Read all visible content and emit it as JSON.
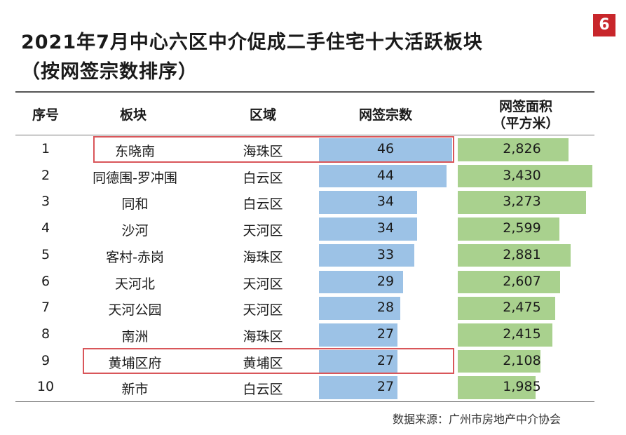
{
  "page_number": "6",
  "chart_data": {
    "type": "table",
    "title": "2021年7月中心六区中介促成二手住宅十大活跃板块",
    "subtitle": "（按网签宗数排序）",
    "columns": [
      "序号",
      "板块",
      "区域",
      "网签宗数",
      "网签面积",
      "（平方米）"
    ],
    "rows": [
      {
        "rank": "1",
        "block": "东晓南",
        "district": "海珠区",
        "count": 46,
        "count_label": "46",
        "area": 2826,
        "area_label": "2,826",
        "highlight": true
      },
      {
        "rank": "2",
        "block": "同德围-罗冲围",
        "district": "白云区",
        "count": 44,
        "count_label": "44",
        "area": 3430,
        "area_label": "3,430",
        "highlight": false
      },
      {
        "rank": "3",
        "block": "同和",
        "district": "白云区",
        "count": 34,
        "count_label": "34",
        "area": 3273,
        "area_label": "3,273",
        "highlight": false
      },
      {
        "rank": "4",
        "block": "沙河",
        "district": "天河区",
        "count": 34,
        "count_label": "34",
        "area": 2599,
        "area_label": "2,599",
        "highlight": false
      },
      {
        "rank": "5",
        "block": "客村-赤岗",
        "district": "海珠区",
        "count": 33,
        "count_label": "33",
        "area": 2881,
        "area_label": "2,881",
        "highlight": false
      },
      {
        "rank": "6",
        "block": "天河北",
        "district": "天河区",
        "count": 29,
        "count_label": "29",
        "area": 2607,
        "area_label": "2,607",
        "highlight": false
      },
      {
        "rank": "7",
        "block": "天河公园",
        "district": "天河区",
        "count": 28,
        "count_label": "28",
        "area": 2475,
        "area_label": "2,475",
        "highlight": false
      },
      {
        "rank": "8",
        "block": "南洲",
        "district": "海珠区",
        "count": 27,
        "count_label": "27",
        "area": 2415,
        "area_label": "2,415",
        "highlight": false
      },
      {
        "rank": "9",
        "block": "黄埔区府",
        "district": "黄埔区",
        "count": 27,
        "count_label": "27",
        "area": 2108,
        "area_label": "2,108",
        "highlight": true
      },
      {
        "rank": "10",
        "block": "新市",
        "district": "白云区",
        "count": 27,
        "count_label": "27",
        "area": 1985,
        "area_label": "1,985",
        "highlight": false
      }
    ],
    "count_max": 46,
    "area_max": 3430
  },
  "source": "数据来源：广州市房地产中介协会",
  "colors": {
    "count_bar": "#9cc2e6",
    "area_bar": "#a9d18e",
    "highlight": "#d9565a",
    "badge": "#c8262b"
  }
}
